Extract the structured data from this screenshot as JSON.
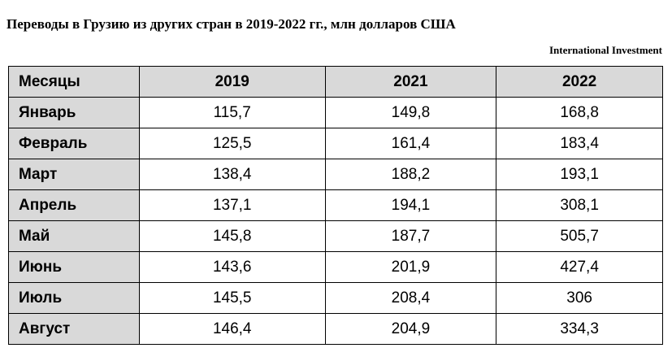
{
  "title": "Переводы в Грузию из других стран в 2019-2022 гг., млн долларов США",
  "source": "International Investment",
  "table": {
    "header": [
      "Месяцы",
      "2019",
      "2021",
      "2022"
    ],
    "rows": [
      [
        "Январь",
        "115,7",
        "149,8",
        "168,8"
      ],
      [
        "Февраль",
        "125,5",
        "161,4",
        "183,4"
      ],
      [
        "Март",
        "138,4",
        "188,2",
        "193,1"
      ],
      [
        "Апрель",
        "137,1",
        "194,1",
        "308,1"
      ],
      [
        "Май",
        "145,8",
        "187,7",
        "505,7"
      ],
      [
        "Июнь",
        "143,6",
        "201,9",
        "427,4"
      ],
      [
        "Июль",
        "145,5",
        "208,4",
        "306"
      ],
      [
        "Август",
        "146,4",
        "204,9",
        "334,3"
      ]
    ]
  }
}
